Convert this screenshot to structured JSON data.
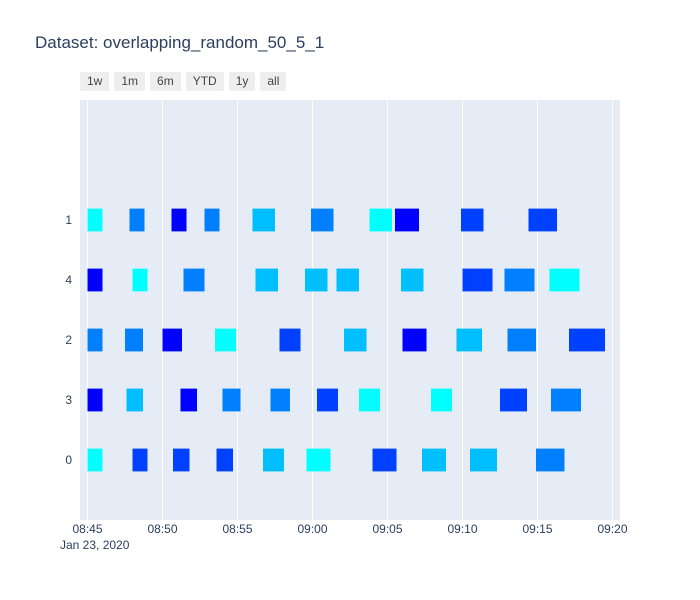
{
  "title": "Dataset: overlapping_random_50_5_1",
  "range_buttons": [
    "1w",
    "1m",
    "6m",
    "YTD",
    "1y",
    "all"
  ],
  "colors": {
    "plot_bg": "#e5ecf6",
    "grid": "#ffffff",
    "cyan": "#00ffff",
    "light_blue": "#00bfff",
    "mid_blue": "#0080ff",
    "blue": "#0040ff",
    "deep_blue": "#0000ff"
  },
  "chart_data": {
    "type": "gantt",
    "xlabel": "",
    "ylabel": "",
    "x_date": "Jan 23, 2020",
    "x_ticks": [
      "08:45",
      "08:50",
      "08:55",
      "09:00",
      "09:05",
      "09:10",
      "09:15",
      "09:20"
    ],
    "xlim": [
      "08:44.5",
      "09:20.5"
    ],
    "rows": [
      "1",
      "4",
      "2",
      "3",
      "0"
    ],
    "tasks": [
      {
        "row": "1",
        "start": "08:45.0",
        "end": "08:46.0",
        "color": "#00ffff"
      },
      {
        "row": "1",
        "start": "08:47.8",
        "end": "08:48.8",
        "color": "#0080ff"
      },
      {
        "row": "1",
        "start": "08:50.6",
        "end": "08:51.6",
        "color": "#0000ff"
      },
      {
        "row": "1",
        "start": "08:52.8",
        "end": "08:53.8",
        "color": "#0080ff"
      },
      {
        "row": "1",
        "start": "08:56.0",
        "end": "08:57.5",
        "color": "#00bfff"
      },
      {
        "row": "1",
        "start": "08:59.9",
        "end": "09:01.4",
        "color": "#0080ff"
      },
      {
        "row": "1",
        "start": "09:03.8",
        "end": "09:05.3",
        "color": "#00ffff"
      },
      {
        "row": "1",
        "start": "09:05.5",
        "end": "09:07.1",
        "color": "#0000ff"
      },
      {
        "row": "1",
        "start": "09:09.9",
        "end": "09:11.4",
        "color": "#0040ff"
      },
      {
        "row": "1",
        "start": "09:14.4",
        "end": "09:16.3",
        "color": "#0040ff"
      },
      {
        "row": "4",
        "start": "08:45.0",
        "end": "08:46.0",
        "color": "#0000ff"
      },
      {
        "row": "4",
        "start": "08:48.0",
        "end": "08:49.0",
        "color": "#00ffff"
      },
      {
        "row": "4",
        "start": "08:51.4",
        "end": "08:52.8",
        "color": "#0080ff"
      },
      {
        "row": "4",
        "start": "08:56.2",
        "end": "08:57.7",
        "color": "#00bfff"
      },
      {
        "row": "4",
        "start": "08:59.5",
        "end": "09:01.0",
        "color": "#00bfff"
      },
      {
        "row": "4",
        "start": "09:01.6",
        "end": "09:03.1",
        "color": "#00bfff"
      },
      {
        "row": "4",
        "start": "09:05.9",
        "end": "09:07.4",
        "color": "#00bfff"
      },
      {
        "row": "4",
        "start": "09:10.0",
        "end": "09:12.0",
        "color": "#0040ff"
      },
      {
        "row": "4",
        "start": "09:12.8",
        "end": "09:14.8",
        "color": "#0080ff"
      },
      {
        "row": "4",
        "start": "09:15.8",
        "end": "09:17.8",
        "color": "#00ffff"
      },
      {
        "row": "2",
        "start": "08:45.0",
        "end": "08:46.0",
        "color": "#0080ff"
      },
      {
        "row": "2",
        "start": "08:47.5",
        "end": "08:48.7",
        "color": "#0080ff"
      },
      {
        "row": "2",
        "start": "08:50.0",
        "end": "08:51.3",
        "color": "#0000ff"
      },
      {
        "row": "2",
        "start": "08:53.5",
        "end": "08:54.9",
        "color": "#00ffff"
      },
      {
        "row": "2",
        "start": "08:57.8",
        "end": "08:59.2",
        "color": "#0040ff"
      },
      {
        "row": "2",
        "start": "09:02.1",
        "end": "09:03.6",
        "color": "#00bfff"
      },
      {
        "row": "2",
        "start": "09:06.0",
        "end": "09:07.6",
        "color": "#0000ff"
      },
      {
        "row": "2",
        "start": "09:09.6",
        "end": "09:11.3",
        "color": "#00bfff"
      },
      {
        "row": "2",
        "start": "09:13.0",
        "end": "09:14.9",
        "color": "#0080ff"
      },
      {
        "row": "2",
        "start": "09:17.1",
        "end": "09:19.5",
        "color": "#0040ff"
      },
      {
        "row": "3",
        "start": "08:45.0",
        "end": "08:46.0",
        "color": "#0000ff"
      },
      {
        "row": "3",
        "start": "08:47.6",
        "end": "08:48.7",
        "color": "#00bfff"
      },
      {
        "row": "3",
        "start": "08:51.2",
        "end": "08:52.3",
        "color": "#0000ff"
      },
      {
        "row": "3",
        "start": "08:54.0",
        "end": "08:55.2",
        "color": "#0080ff"
      },
      {
        "row": "3",
        "start": "08:57.2",
        "end": "08:58.5",
        "color": "#0080ff"
      },
      {
        "row": "3",
        "start": "09:00.3",
        "end": "09:01.7",
        "color": "#0040ff"
      },
      {
        "row": "3",
        "start": "09:03.1",
        "end": "09:04.5",
        "color": "#00ffff"
      },
      {
        "row": "3",
        "start": "09:07.9",
        "end": "09:09.3",
        "color": "#00ffff"
      },
      {
        "row": "3",
        "start": "09:12.5",
        "end": "09:14.3",
        "color": "#0040ff"
      },
      {
        "row": "3",
        "start": "09:15.9",
        "end": "09:17.9",
        "color": "#0080ff"
      },
      {
        "row": "0",
        "start": "08:45.0",
        "end": "08:46.0",
        "color": "#00ffff"
      },
      {
        "row": "0",
        "start": "08:48.0",
        "end": "08:49.0",
        "color": "#0040ff"
      },
      {
        "row": "0",
        "start": "08:50.7",
        "end": "08:51.8",
        "color": "#0040ff"
      },
      {
        "row": "0",
        "start": "08:53.6",
        "end": "08:54.7",
        "color": "#0040ff"
      },
      {
        "row": "0",
        "start": "08:56.7",
        "end": "08:58.1",
        "color": "#00bfff"
      },
      {
        "row": "0",
        "start": "08:59.6",
        "end": "09:01.2",
        "color": "#00ffff"
      },
      {
        "row": "0",
        "start": "09:04.0",
        "end": "09:05.6",
        "color": "#0040ff"
      },
      {
        "row": "0",
        "start": "09:07.3",
        "end": "09:08.9",
        "color": "#00bfff"
      },
      {
        "row": "0",
        "start": "09:10.5",
        "end": "09:12.3",
        "color": "#00bfff"
      },
      {
        "row": "0",
        "start": "09:14.9",
        "end": "09:16.8",
        "color": "#0080ff"
      }
    ]
  }
}
